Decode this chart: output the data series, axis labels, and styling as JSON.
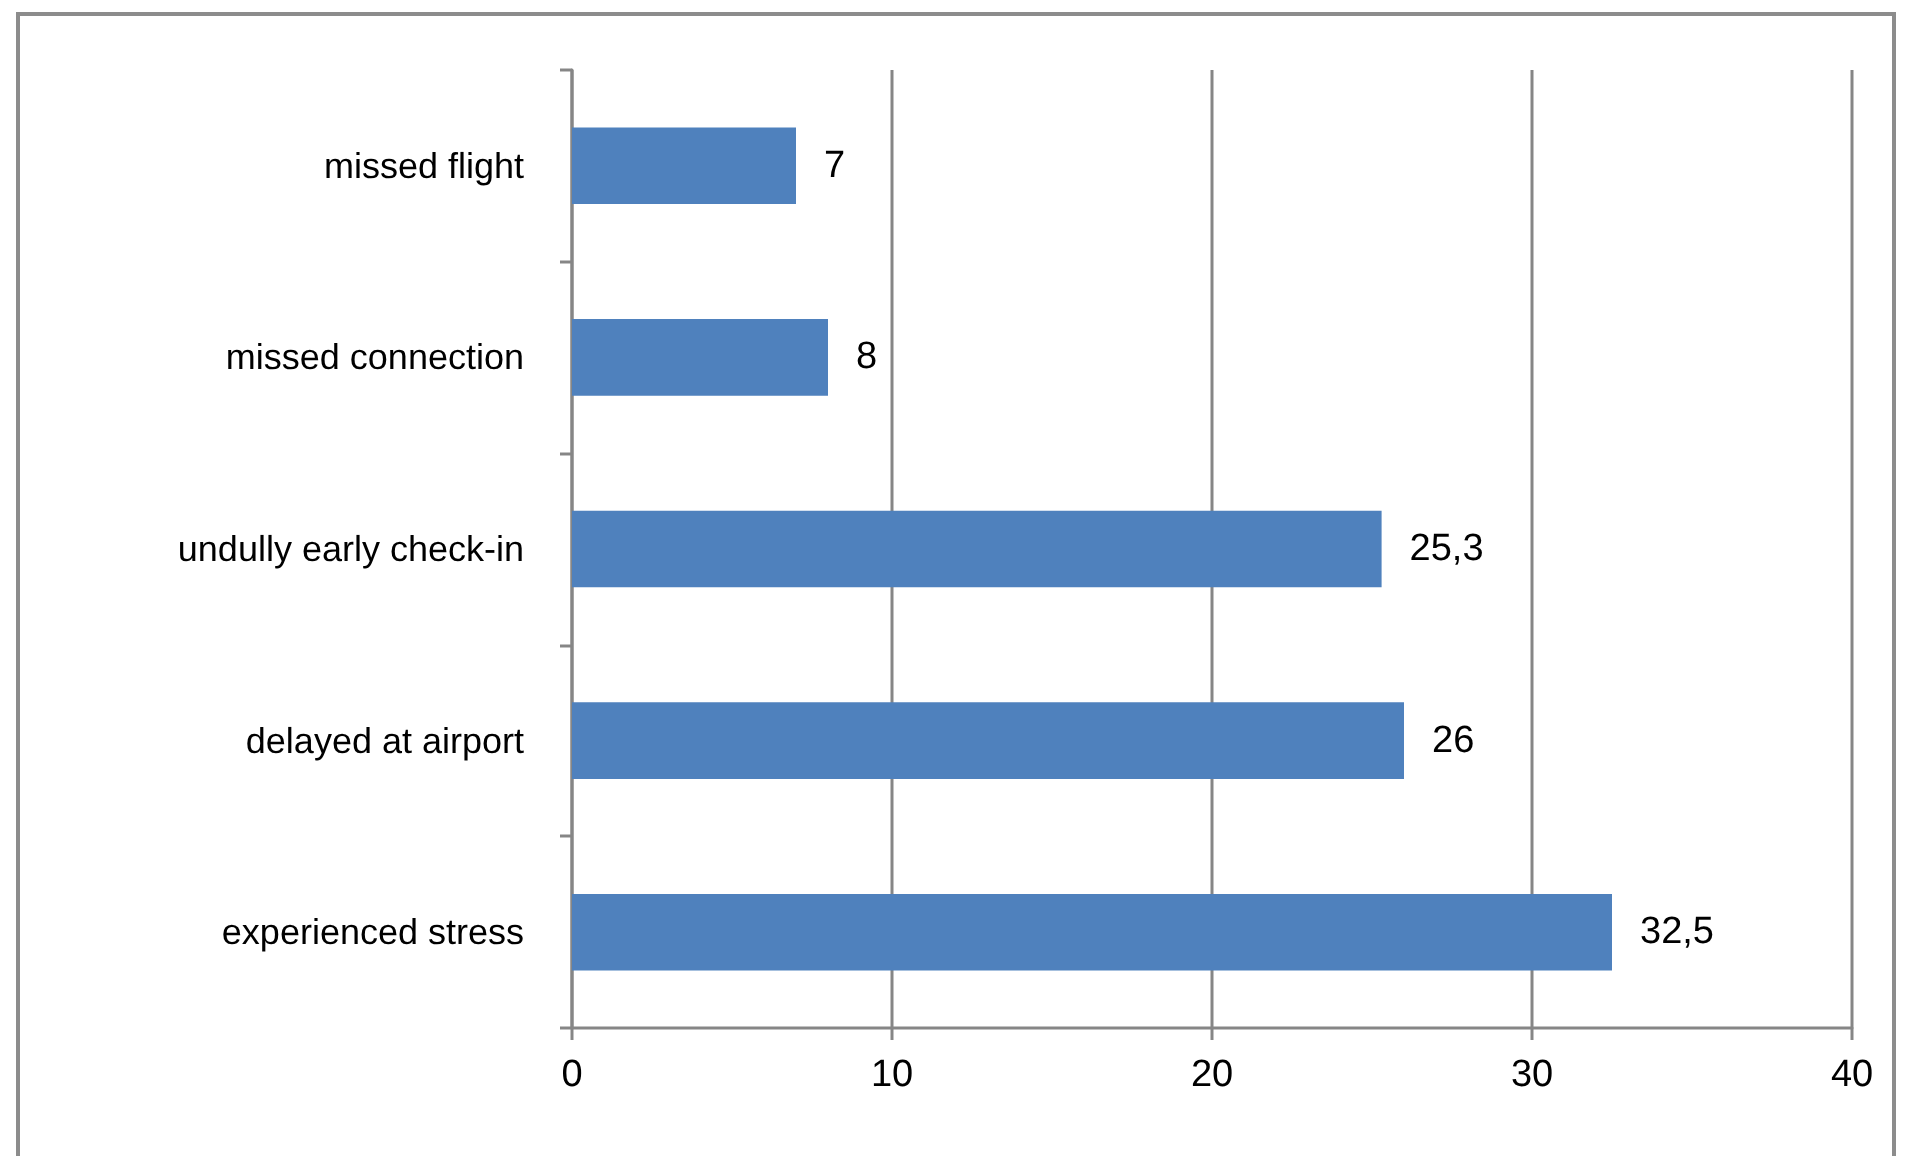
{
  "chart_data": {
    "type": "bar",
    "orientation": "horizontal",
    "categories": [
      "missed flight",
      "missed connection",
      "undully early check-in",
      "delayed at airport",
      "experienced stress"
    ],
    "values": [
      7,
      8,
      25.3,
      26,
      32.5
    ],
    "color": "#4f81bd",
    "value_labels": [
      "7",
      "8",
      "25,3",
      "26",
      "32,5"
    ],
    "xlim": [
      0,
      40
    ],
    "xticks": [
      0,
      10,
      20,
      30,
      40
    ],
    "grid": "x"
  }
}
